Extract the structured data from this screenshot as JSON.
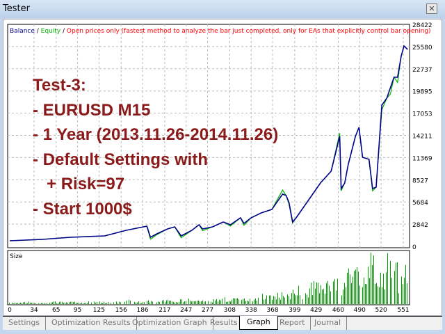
{
  "window": {
    "title": "Tester",
    "close_icon": "close-icon"
  },
  "legend": {
    "balance": "Balance",
    "sep1": " / ",
    "equity": "Equity",
    "sep2": " / ",
    "mode": "Open prices only (fastest method to analyze the bar just completed, only for EAs that explicitly control bar opening)"
  },
  "overlay_lines": [
    "Test-3:",
    "- EURUSD M15",
    "- 1 Year (2013.11.26-2014.11.26)",
    "- Default Settings with",
    "   + Risk=97",
    "- Start 1000$"
  ],
  "size_label": "Size",
  "tabs": [
    {
      "label": "Settings"
    },
    {
      "label": "Optimization Results"
    },
    {
      "label": "Optimization Graph"
    },
    {
      "label": "Results"
    },
    {
      "label": "Graph",
      "active": true
    },
    {
      "label": "Report"
    },
    {
      "label": "Journal"
    }
  ],
  "colors": {
    "balance": "#00008b",
    "equity": "#00b000",
    "size": "#00a000",
    "legend_mode": "#ff0000",
    "overlay": "#8b1a1a"
  },
  "chart_data": {
    "type": "line",
    "y_ticks": [
      "28422",
      "25580",
      "22737",
      "19895",
      "17053",
      "14211",
      "11369",
      "8527",
      "5684",
      "2842",
      "0"
    ],
    "x_ticks": [
      "0",
      "34",
      "65",
      "95",
      "125",
      "156",
      "186",
      "217",
      "247",
      "277",
      "308",
      "338",
      "368",
      "399",
      "429",
      "460",
      "490",
      "520",
      "551"
    ],
    "ylim": [
      0,
      28422
    ],
    "xlim": [
      0,
      554
    ],
    "grid": true,
    "series": [
      {
        "name": "Balance",
        "x": [
          0,
          46,
          85,
          133,
          163,
          192,
          197,
          206,
          221,
          231,
          240,
          255,
          265,
          270,
          284,
          299,
          309,
          323,
          328,
          338,
          352,
          367,
          382,
          387,
          391,
          396,
          401,
          416,
          435,
          450,
          462,
          464,
          469,
          474,
          484,
          489,
          494,
          503,
          508,
          513,
          521,
          528,
          533,
          538,
          543,
          548,
          552,
          557
        ],
        "values": [
          713,
          891,
          1158,
          1337,
          2049,
          2584,
          1158,
          1604,
          2228,
          2495,
          1337,
          2049,
          2762,
          2228,
          2495,
          3119,
          2762,
          3653,
          2940,
          3653,
          4277,
          4722,
          6683,
          6504,
          5613,
          3119,
          3653,
          5613,
          8108,
          9623,
          14078,
          7395,
          8108,
          10514,
          14078,
          15236,
          11405,
          11138,
          7395,
          7574,
          18087,
          18978,
          20315,
          21651,
          21651,
          24324,
          25661,
          25215
        ]
      },
      {
        "name": "Equity",
        "x": [
          0,
          46,
          85,
          133,
          163,
          192,
          197,
          206,
          221,
          231,
          240,
          255,
          265,
          270,
          284,
          299,
          309,
          323,
          328,
          338,
          352,
          367,
          382,
          387,
          391,
          396,
          401,
          416,
          435,
          450,
          462,
          464,
          469,
          474,
          484,
          489,
          494,
          503,
          508,
          513,
          521,
          528,
          533,
          538,
          543,
          548,
          552,
          557
        ],
        "values": [
          713,
          891,
          1158,
          1337,
          2049,
          2584,
          900,
          1500,
          2228,
          2495,
          1100,
          2049,
          2762,
          2000,
          2495,
          3119,
          2600,
          3653,
          2700,
          3653,
          4277,
          4722,
          7200,
          6504,
          5400,
          3000,
          3653,
          5613,
          8108,
          9623,
          14500,
          7100,
          8108,
          10514,
          14078,
          15236,
          11405,
          11138,
          7100,
          7574,
          17500,
          18978,
          19500,
          21651,
          21000,
          24324,
          25661,
          25215
        ]
      }
    ],
    "size_series": {
      "name": "Size",
      "values": [
        3,
        2,
        4,
        3,
        2,
        5,
        3,
        4,
        2,
        6,
        4,
        3,
        5,
        7,
        4,
        6,
        5,
        8,
        6,
        9,
        7,
        10,
        8,
        12,
        9,
        15,
        11,
        18,
        13,
        22,
        16,
        30,
        20,
        45,
        28,
        60,
        35,
        70,
        40,
        85,
        50,
        95,
        55,
        70
      ]
    }
  }
}
